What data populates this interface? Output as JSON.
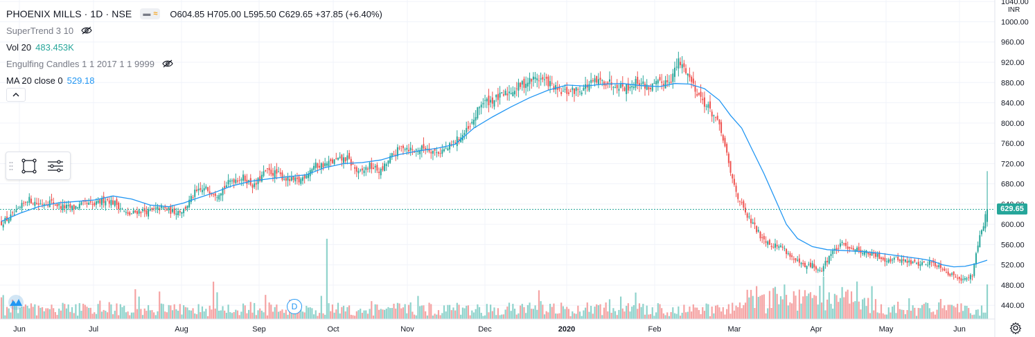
{
  "header": {
    "symbol_title": "PHOENIX MILLS · 1D · NSE",
    "ohlc": "O604.85 H705.00 L595.50 C629.65 +37.85 (+6.40%)"
  },
  "indicators": [
    {
      "name": "SuperTrend 3 10",
      "value": "",
      "hidden": true
    },
    {
      "name": "Vol 20",
      "value": "483.453K",
      "hidden": false
    },
    {
      "name": "Engulfing Candles 1 1 2017 1 1 9999",
      "value": "",
      "hidden": true
    },
    {
      "name": "MA 20 close 0",
      "value": "529.18",
      "hidden": false
    }
  ],
  "price_axis": {
    "currency": "INR",
    "current_price_label": "629.65"
  },
  "dividend_marker": "D",
  "icons": {
    "collapse": "chevron-up-icon",
    "drawing": "rectangle-select-icon",
    "objects": "object-list-icon",
    "logo": "tradingview-logo-icon",
    "settings": "gear-icon",
    "visibility": "eye-off-icon"
  },
  "colors": {
    "up": "#26a69a",
    "down": "#ef5350",
    "ma": "#2196f3",
    "volume_up": "#8fd3cc",
    "volume_down": "#f5a3a3",
    "grid": "#f0f3fa",
    "price_line": "#26a69a"
  },
  "chart_data": {
    "type": "candlestick",
    "y_ticks": [
      "1040.00",
      "1000.00",
      "960.00",
      "920.00",
      "880.00",
      "840.00",
      "800.00",
      "760.00",
      "720.00",
      "680.00",
      "640.00",
      "600.00",
      "560.00",
      "520.00",
      "480.00",
      "440.00"
    ],
    "x_labels": [
      "Jun",
      "Jul",
      "Aug",
      "Sep",
      "Oct",
      "Nov",
      "Dec",
      "2020",
      "Feb",
      "Mar",
      "Apr",
      "May",
      "Jun"
    ],
    "ylim": [
      413,
      1043
    ],
    "current_price": 629.65,
    "last_candle": {
      "open": 604.85,
      "high": 705.0,
      "low": 595.5,
      "close": 629.65
    },
    "grid": true,
    "anchors": [
      [
        0,
        603
      ],
      [
        8,
        622
      ],
      [
        14,
        650
      ],
      [
        20,
        640
      ],
      [
        26,
        645
      ],
      [
        32,
        635
      ],
      [
        38,
        632
      ],
      [
        44,
        640
      ],
      [
        50,
        638
      ],
      [
        56,
        650
      ],
      [
        62,
        640
      ],
      [
        68,
        618
      ],
      [
        74,
        627
      ],
      [
        80,
        625
      ],
      [
        86,
        633
      ],
      [
        92,
        625
      ],
      [
        98,
        628
      ],
      [
        104,
        662
      ],
      [
        110,
        670
      ],
      [
        116,
        660
      ],
      [
        124,
        688
      ],
      [
        130,
        692
      ],
      [
        136,
        675
      ],
      [
        142,
        705
      ],
      [
        148,
        700
      ],
      [
        154,
        688
      ],
      [
        160,
        685
      ],
      [
        168,
        715
      ],
      [
        174,
        718
      ],
      [
        180,
        726
      ],
      [
        186,
        730
      ],
      [
        192,
        700
      ],
      [
        198,
        715
      ],
      [
        204,
        704
      ],
      [
        210,
        735
      ],
      [
        216,
        755
      ],
      [
        222,
        745
      ],
      [
        228,
        752
      ],
      [
        234,
        742
      ],
      [
        240,
        750
      ],
      [
        246,
        770
      ],
      [
        252,
        790
      ],
      [
        258,
        840
      ],
      [
        264,
        845
      ],
      [
        270,
        855
      ],
      [
        276,
        868
      ],
      [
        282,
        880
      ],
      [
        288,
        890
      ],
      [
        294,
        880
      ],
      [
        300,
        860
      ],
      [
        306,
        862
      ],
      [
        312,
        868
      ],
      [
        318,
        880
      ],
      [
        324,
        882
      ],
      [
        330,
        878
      ],
      [
        336,
        870
      ],
      [
        342,
        882
      ],
      [
        348,
        870
      ],
      [
        354,
        878
      ],
      [
        360,
        888
      ],
      [
        364,
        920
      ],
      [
        368,
        905
      ],
      [
        372,
        875
      ],
      [
        376,
        850
      ],
      [
        380,
        830
      ],
      [
        384,
        810
      ],
      [
        388,
        770
      ],
      [
        392,
        700
      ],
      [
        396,
        655
      ],
      [
        400,
        620
      ],
      [
        404,
        600
      ],
      [
        408,
        578
      ],
      [
        414,
        560
      ],
      [
        420,
        555
      ],
      [
        426,
        530
      ],
      [
        432,
        515
      ],
      [
        436,
        520
      ],
      [
        440,
        505
      ],
      [
        446,
        543
      ],
      [
        452,
        560
      ],
      [
        458,
        553
      ],
      [
        464,
        545
      ],
      [
        470,
        538
      ],
      [
        476,
        530
      ],
      [
        482,
        532
      ],
      [
        488,
        525
      ],
      [
        494,
        522
      ],
      [
        500,
        525
      ],
      [
        506,
        515
      ],
      [
        510,
        500
      ],
      [
        514,
        497
      ],
      [
        518,
        490
      ],
      [
        522,
        500
      ],
      [
        524,
        545
      ],
      [
        526,
        580
      ],
      [
        528,
        600
      ],
      [
        530,
        629.65
      ]
    ],
    "ma_points": [
      [
        0,
        606
      ],
      [
        10,
        622
      ],
      [
        20,
        635
      ],
      [
        30,
        642
      ],
      [
        40,
        645
      ],
      [
        50,
        648
      ],
      [
        60,
        656
      ],
      [
        70,
        650
      ],
      [
        80,
        638
      ],
      [
        90,
        635
      ],
      [
        98,
        642
      ],
      [
        104,
        650
      ],
      [
        114,
        662
      ],
      [
        124,
        676
      ],
      [
        134,
        685
      ],
      [
        144,
        690
      ],
      [
        154,
        694
      ],
      [
        164,
        698
      ],
      [
        174,
        712
      ],
      [
        184,
        720
      ],
      [
        194,
        722
      ],
      [
        204,
        727
      ],
      [
        214,
        738
      ],
      [
        224,
        745
      ],
      [
        234,
        750
      ],
      [
        244,
        758
      ],
      [
        254,
        790
      ],
      [
        264,
        812
      ],
      [
        274,
        832
      ],
      [
        284,
        850
      ],
      [
        294,
        865
      ],
      [
        304,
        875
      ],
      [
        314,
        873
      ],
      [
        324,
        877
      ],
      [
        334,
        878
      ],
      [
        344,
        874
      ],
      [
        354,
        872
      ],
      [
        362,
        878
      ],
      [
        370,
        877
      ],
      [
        378,
        868
      ],
      [
        386,
        845
      ],
      [
        392,
        815
      ],
      [
        398,
        790
      ],
      [
        404,
        745
      ],
      [
        410,
        700
      ],
      [
        416,
        650
      ],
      [
        422,
        600
      ],
      [
        428,
        572
      ],
      [
        436,
        556
      ],
      [
        444,
        550
      ],
      [
        454,
        548
      ],
      [
        464,
        546
      ],
      [
        474,
        542
      ],
      [
        484,
        537
      ],
      [
        494,
        532
      ],
      [
        500,
        528
      ],
      [
        506,
        520
      ],
      [
        512,
        516
      ],
      [
        518,
        517
      ],
      [
        524,
        522
      ],
      [
        530,
        529.18
      ]
    ]
  }
}
